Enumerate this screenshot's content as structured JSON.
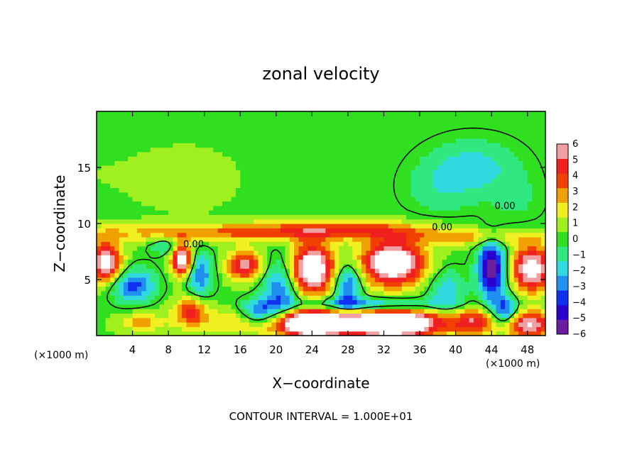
{
  "chart_data": {
    "type": "heatmap",
    "title": "zonal velocity",
    "xlabel": "X−coordinate",
    "ylabel": "Z−coordinate",
    "x_unit_left": "(×1000 m)",
    "x_unit_right": "(×1000 m)",
    "xlim": [
      0,
      50
    ],
    "ylim": [
      0,
      20
    ],
    "x_ticks": [
      4,
      8,
      12,
      16,
      20,
      24,
      28,
      32,
      36,
      40,
      44,
      48
    ],
    "x_tick_labels": [
      "4",
      "8",
      "12",
      "16",
      "20",
      "24",
      "28",
      "32",
      "36",
      "40",
      "44",
      "48"
    ],
    "y_ticks": [
      5,
      10,
      15
    ],
    "y_tick_labels": [
      "5",
      "10",
      "15"
    ],
    "colorbar": {
      "min": -6,
      "max": 6,
      "tick_values": [
        6,
        5,
        4,
        3,
        2,
        1,
        0,
        -1,
        -2,
        -3,
        -4,
        -5,
        -6
      ],
      "tick_labels": [
        "6",
        "5",
        "4",
        "3",
        "2",
        "1",
        "0",
        "−1",
        "−2",
        "−3",
        "−4",
        "−5",
        "−6"
      ],
      "colors": [
        "#6a1fa0",
        "#2a00d0",
        "#1030f0",
        "#2090f0",
        "#30d8e0",
        "#30e880",
        "#30e020",
        "#a0f020",
        "#f0f020",
        "#f0a000",
        "#f04000",
        "#f02020",
        "#f0a0a0"
      ]
    },
    "background_level": 0.3,
    "field_features": [
      {
        "x": 0,
        "z": 14.5,
        "sx": 6,
        "sz": 3,
        "v": 0.15
      },
      {
        "x": 10,
        "z": 14,
        "sx": 5,
        "sz": 2.5,
        "v": 0.7
      },
      {
        "x": 42,
        "z": 15,
        "sx": 5,
        "sz": 2.5,
        "v": -2.1
      },
      {
        "x": 38,
        "z": 13,
        "sx": 4,
        "sz": 2.5,
        "v": -1.1
      },
      {
        "x": 47,
        "z": 12,
        "sx": 3,
        "sz": 2.5,
        "v": -0.8
      },
      {
        "x": 12,
        "z": 9.2,
        "sx": 16,
        "sz": 0.8,
        "v": 2.6
      },
      {
        "x": 27,
        "z": 9.5,
        "sx": 10,
        "sz": 0.8,
        "v": 3.2
      },
      {
        "x": 42,
        "z": 8.8,
        "sx": 8,
        "sz": 0.7,
        "v": 2.3
      },
      {
        "x": 1,
        "z": 6.5,
        "sx": 1.8,
        "sz": 1.8,
        "v": 6.8
      },
      {
        "x": 9.5,
        "z": 6.8,
        "sx": 1.2,
        "sz": 1.5,
        "v": 7.0
      },
      {
        "x": 16.5,
        "z": 6.3,
        "sx": 2.0,
        "sz": 1.3,
        "v": 5.2
      },
      {
        "x": 24,
        "z": 6.0,
        "sx": 2.4,
        "sz": 2.2,
        "v": 8.0
      },
      {
        "x": 33,
        "z": 6.5,
        "sx": 3.5,
        "sz": 2.0,
        "v": 8.0
      },
      {
        "x": 48.5,
        "z": 6.0,
        "sx": 2.2,
        "sz": 2.0,
        "v": 7.0
      },
      {
        "x": 29,
        "z": 1.2,
        "sx": 15,
        "sz": 1.2,
        "v": 5.0
      },
      {
        "x": 24,
        "z": 1.0,
        "sx": 3.5,
        "sz": 1.2,
        "v": 6.0
      },
      {
        "x": 33,
        "z": 1.0,
        "sx": 4.0,
        "sz": 1.2,
        "v": 6.0
      },
      {
        "x": 48,
        "z": 1.0,
        "sx": 3.0,
        "sz": 1.2,
        "v": 5.0
      },
      {
        "x": 10.5,
        "z": 2.3,
        "sx": 1.8,
        "sz": 1.2,
        "v": 3.8
      },
      {
        "x": 5,
        "z": 1.2,
        "sx": 2.0,
        "sz": 0.8,
        "v": 2.2
      },
      {
        "x": 42,
        "z": 1.3,
        "sx": 2.0,
        "sz": 1.2,
        "v": 2.5
      },
      {
        "x": 4,
        "z": 4.5,
        "sx": 2.5,
        "sz": 1.5,
        "v": -4.0
      },
      {
        "x": 11.5,
        "z": 5.5,
        "sx": 1.5,
        "sz": 2.0,
        "v": -3.5
      },
      {
        "x": 20.5,
        "z": 4.0,
        "sx": 2.0,
        "sz": 3.0,
        "v": -3.5
      },
      {
        "x": 28,
        "z": 4.5,
        "sx": 1.5,
        "sz": 2.0,
        "v": -4.0
      },
      {
        "x": 30,
        "z": 2.8,
        "sx": 8.0,
        "sz": 0.6,
        "v": -3.5
      },
      {
        "x": 39,
        "z": 4.0,
        "sx": 2.0,
        "sz": 2.0,
        "v": -2.5
      },
      {
        "x": 44,
        "z": 6.0,
        "sx": 1.5,
        "sz": 2.5,
        "v": -6.5
      },
      {
        "x": 45.5,
        "z": 2.0,
        "sx": 1.5,
        "sz": 1.5,
        "v": -5.0
      },
      {
        "x": 18,
        "z": 2.0,
        "sx": 2.0,
        "sz": 1.2,
        "v": -4.0
      },
      {
        "x": 8,
        "z": 8.0,
        "sx": 2.0,
        "sz": 0.8,
        "v": -2.0
      }
    ],
    "zero_contour_labels": [
      {
        "text": "0.00",
        "x": 10.8,
        "z": 8.2
      },
      {
        "text": "0.00",
        "x": 38.5,
        "z": 9.7
      },
      {
        "text": "0.00",
        "x": 45.5,
        "z": 11.6
      }
    ],
    "annotation": "CONTOUR INTERVAL = 1.000E+01"
  }
}
